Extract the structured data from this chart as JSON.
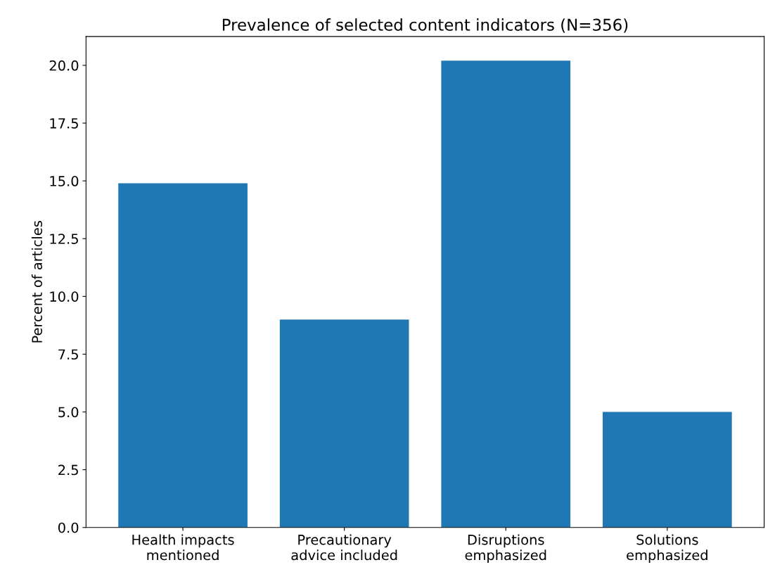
{
  "chart_data": {
    "type": "bar",
    "title": "Prevalence of selected content indicators (N=356)",
    "ylabel": "Percent of articles",
    "categories": [
      "Health impacts\nmentioned",
      "Precautionary\nadvice included",
      "Disruptions\nemphasized",
      "Solutions\nemphasized"
    ],
    "values": [
      14.9,
      9.0,
      20.2,
      5.0
    ],
    "color": "#1f77b4",
    "ylim": [
      0,
      21.25
    ],
    "yticks": [
      {
        "value": 0,
        "label": "0.0"
      },
      {
        "value": 2.5,
        "label": "2.5"
      },
      {
        "value": 5,
        "label": "5.0"
      },
      {
        "value": 7.5,
        "label": "7.5"
      },
      {
        "value": 10,
        "label": "10.0"
      },
      {
        "value": 12.5,
        "label": "12.5"
      },
      {
        "value": 15,
        "label": "15.0"
      },
      {
        "value": 17.5,
        "label": "17.5"
      },
      {
        "value": 20,
        "label": "20.0"
      }
    ],
    "grid": false
  }
}
